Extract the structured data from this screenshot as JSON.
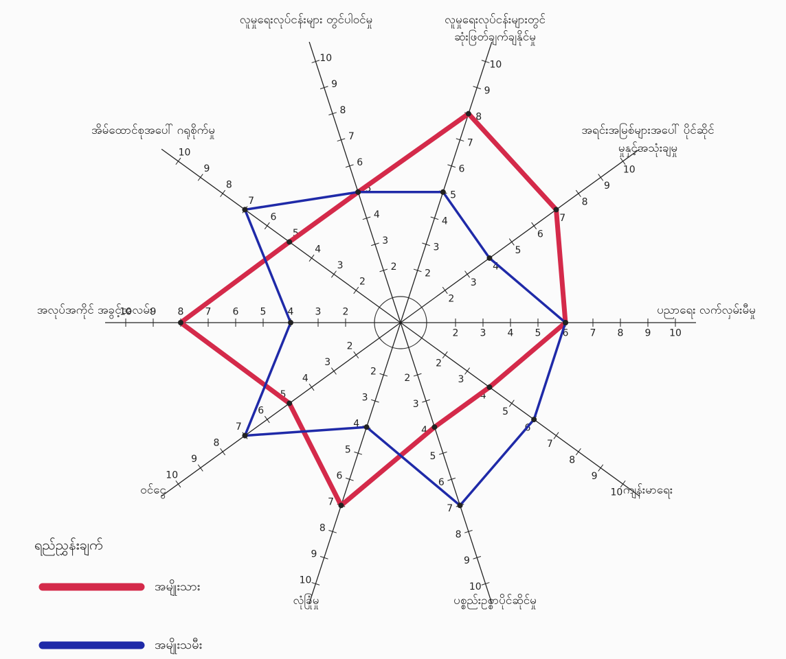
{
  "chart_data": {
    "type": "radar",
    "categories": [
      "ပညာရေး လက်လှမ်းမီမှု",
      "အရင်းအမြစ်များအပေါ် ပိုင်ဆိုင်မှုနှင့်အသုံးချမှု",
      "လူမှုရေးလုပ်ငန်းများတွင် ဆုံးဖြတ်ချက်ချနိုင်မှု",
      "လူမှုရေးလုပ်ငန်းများ တွင်ပါဝင်မှု",
      "အိမ်ထောင်စုအပေါ် ဂရုစိုက်မှု",
      "အလုပ်အကိုင် အခွင့်အလမ်း",
      "ဝင်ငွေ",
      "လုံခြုံမှု",
      "ပစ္စည်းဥစ္စာပိုင်ဆိုင်မှု",
      "ကျန်းမာရေး"
    ],
    "series": [
      {
        "name": "အမျိုးသား",
        "color": "#d42a4a",
        "values": [
          6,
          7,
          8,
          5,
          5,
          8,
          5,
          7,
          4,
          4
        ]
      },
      {
        "name": "အမျိုးသမီး",
        "color": "#1f2aa8",
        "values": [
          6,
          4,
          5,
          5,
          7,
          4,
          7,
          4,
          7,
          6
        ]
      }
    ],
    "rlim": [
      0,
      10
    ],
    "rticks": [
      2,
      3,
      4,
      5,
      6,
      7,
      8,
      9,
      10
    ],
    "legend_title": "ရည်ညွှန်းချက်"
  }
}
